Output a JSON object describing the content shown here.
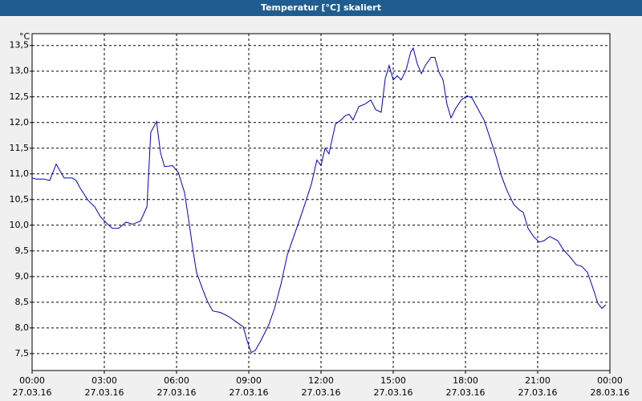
{
  "chart_data": {
    "type": "line",
    "title": "Temperatur [°C] skaliert",
    "y_label": "°C",
    "x": [
      0,
      0.17,
      0.5,
      0.73,
      1,
      1.33,
      1.67,
      1.83,
      2,
      2.33,
      2.6,
      2.83,
      3.07,
      3.33,
      3.6,
      3.9,
      4.17,
      4.5,
      4.77,
      4.93,
      5.17,
      5.33,
      5.5,
      5.83,
      6.07,
      6.33,
      6.53,
      6.67,
      6.83,
      7.07,
      7.27,
      7.5,
      7.83,
      8.17,
      8.5,
      8.77,
      8.93,
      9.1,
      9.27,
      9.5,
      9.83,
      10.07,
      10.33,
      10.6,
      10.83,
      11.1,
      11.33,
      11.6,
      11.83,
      12,
      12.17,
      12.33,
      12.6,
      12.83,
      13,
      13.17,
      13.33,
      13.57,
      13.83,
      14.07,
      14.27,
      14.5,
      14.67,
      14.83,
      15,
      15.17,
      15.33,
      15.53,
      15.73,
      15.83,
      16,
      16.17,
      16.33,
      16.57,
      16.73,
      16.9,
      17.07,
      17.23,
      17.4,
      17.6,
      17.83,
      18.07,
      18.27,
      18.5,
      18.77,
      19,
      19.27,
      19.5,
      19.73,
      20,
      20.23,
      20.4,
      20.6,
      20.83,
      21.07,
      21.27,
      21.5,
      21.83,
      22.07,
      22.33,
      22.6,
      22.83,
      23.07,
      23.33,
      23.5,
      23.67,
      23.83
    ],
    "series": [
      {
        "color": "#0000c0",
        "values": [
          10.92,
          10.9,
          10.9,
          10.87,
          11.19,
          10.92,
          10.92,
          10.87,
          10.72,
          10.48,
          10.36,
          10.17,
          10.05,
          9.94,
          9.94,
          10.06,
          10.02,
          10.08,
          10.36,
          11.81,
          12.02,
          11.42,
          11.14,
          11.16,
          11.03,
          10.64,
          10.02,
          9.55,
          9.08,
          8.77,
          8.53,
          8.33,
          8.3,
          8.22,
          8.11,
          8.02,
          7.75,
          7.52,
          7.56,
          7.75,
          8.06,
          8.38,
          8.84,
          9.42,
          9.73,
          10.09,
          10.41,
          10.8,
          11.27,
          11.16,
          11.5,
          11.39,
          11.97,
          12.05,
          12.13,
          12.16,
          12.05,
          12.31,
          12.36,
          12.44,
          12.25,
          12.2,
          12.86,
          13.11,
          12.83,
          12.91,
          12.83,
          13.02,
          13.38,
          13.45,
          13.14,
          12.95,
          13.11,
          13.27,
          13.27,
          12.98,
          12.83,
          12.36,
          12.09,
          12.28,
          12.44,
          12.52,
          12.48,
          12.28,
          12.05,
          11.73,
          11.34,
          10.95,
          10.67,
          10.41,
          10.3,
          10.25,
          9.94,
          9.78,
          9.67,
          9.7,
          9.78,
          9.7,
          9.52,
          9.39,
          9.23,
          9.2,
          9.08,
          8.73,
          8.48,
          8.38,
          8.45
        ]
      }
    ],
    "xlim": [
      0,
      24
    ],
    "xticks": [
      {
        "value": 0,
        "label": [
          "00:00",
          "27.03.16"
        ]
      },
      {
        "value": 3,
        "label": [
          "03:00",
          "27.03.16"
        ]
      },
      {
        "value": 6,
        "label": [
          "06:00",
          "27.03.16"
        ]
      },
      {
        "value": 9,
        "label": [
          "09:00",
          "27.03.16"
        ]
      },
      {
        "value": 12,
        "label": [
          "12:00",
          "27.03.16"
        ]
      },
      {
        "value": 15,
        "label": [
          "15:00",
          "27.03.16"
        ]
      },
      {
        "value": 18,
        "label": [
          "18:00",
          "27.03.16"
        ]
      },
      {
        "value": 21,
        "label": [
          "21:00",
          "27.03.16"
        ]
      },
      {
        "value": 24,
        "label": [
          "00:00",
          "28.03.16"
        ]
      }
    ],
    "ylim": [
      7.17,
      13.73
    ],
    "yticks": [
      {
        "value": 7.5,
        "label": "7,5"
      },
      {
        "value": 8,
        "label": "8,0"
      },
      {
        "value": 8.5,
        "label": "8,5"
      },
      {
        "value": 9,
        "label": "9,0"
      },
      {
        "value": 9.5,
        "label": "9,5"
      },
      {
        "value": 10,
        "label": "10,0"
      },
      {
        "value": 10.5,
        "label": "10,5"
      },
      {
        "value": 11,
        "label": "11,0"
      },
      {
        "value": 11.5,
        "label": "11,5"
      },
      {
        "value": 12,
        "label": "12,0"
      },
      {
        "value": 12.5,
        "label": "12,5"
      },
      {
        "value": 13,
        "label": "13,0"
      },
      {
        "value": 13.5,
        "label": "13,5"
      }
    ],
    "grid": true
  }
}
